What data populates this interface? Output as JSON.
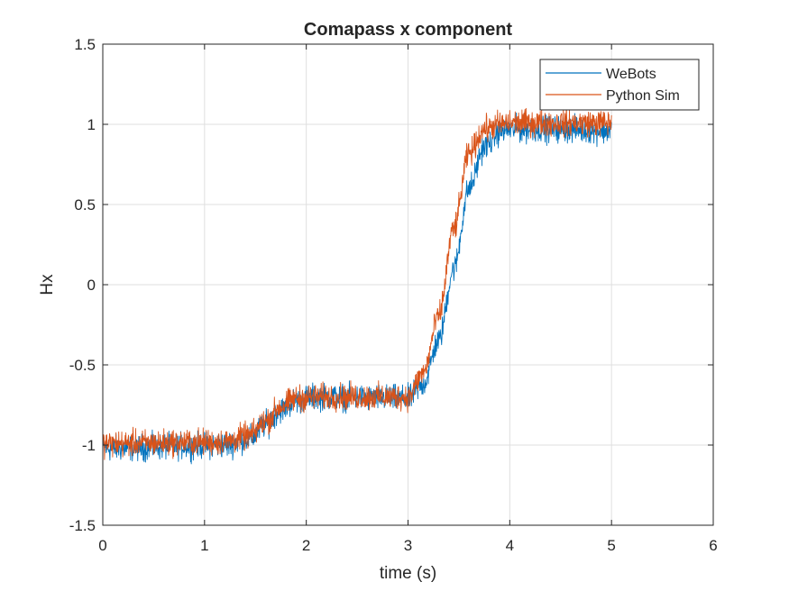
{
  "chart_data": {
    "type": "line",
    "title": "Comapass x component",
    "xlabel": "time (s)",
    "ylabel": "Hx",
    "xlim": [
      0,
      6
    ],
    "ylim": [
      -1.5,
      1.5
    ],
    "xticks": [
      0,
      1,
      2,
      3,
      4,
      5,
      6
    ],
    "yticks": [
      -1.5,
      -1,
      -0.5,
      0,
      0.5,
      1,
      1.5
    ],
    "xtick_labels": [
      "0",
      "1",
      "2",
      "3",
      "4",
      "5",
      "6"
    ],
    "ytick_labels": [
      "-1.5",
      "-1",
      "-0.5",
      "0",
      "0.5",
      "1",
      "1.5"
    ],
    "grid": true,
    "legend_position": "top-right",
    "series": [
      {
        "name": "WeBots",
        "color": "#0072BD",
        "noise_amplitude": 0.05,
        "x": [
          0,
          1.2,
          1.45,
          1.6,
          1.75,
          1.9,
          2.1,
          3.0,
          3.15,
          3.3,
          3.45,
          3.6,
          3.75,
          3.9,
          4.0,
          4.5,
          5.0
        ],
        "y": [
          -1.02,
          -1.0,
          -0.96,
          -0.87,
          -0.78,
          -0.72,
          -0.7,
          -0.71,
          -0.62,
          -0.35,
          0.1,
          0.6,
          0.86,
          0.95,
          0.97,
          0.97,
          0.96
        ]
      },
      {
        "name": "Python Sim",
        "color": "#D95319",
        "noise_amplitude": 0.05,
        "x": [
          0,
          1.2,
          1.45,
          1.6,
          1.75,
          1.9,
          2.1,
          3.0,
          3.15,
          3.3,
          3.45,
          3.6,
          3.75,
          3.9,
          4.0,
          4.5,
          5.0
        ],
        "y": [
          -0.99,
          -0.98,
          -0.94,
          -0.85,
          -0.76,
          -0.71,
          -0.7,
          -0.7,
          -0.55,
          -0.2,
          0.35,
          0.82,
          0.97,
          1.0,
          1.01,
          1.01,
          1.01
        ]
      }
    ]
  }
}
